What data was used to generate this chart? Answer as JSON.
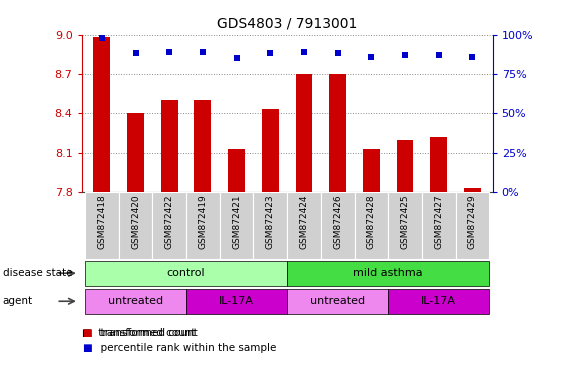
{
  "title": "GDS4803 / 7913001",
  "samples": [
    "GSM872418",
    "GSM872420",
    "GSM872422",
    "GSM872419",
    "GSM872421",
    "GSM872423",
    "GSM872424",
    "GSM872426",
    "GSM872428",
    "GSM872425",
    "GSM872427",
    "GSM872429"
  ],
  "bar_values": [
    8.98,
    8.4,
    8.5,
    8.5,
    8.13,
    8.43,
    8.7,
    8.7,
    8.13,
    8.2,
    8.22,
    7.83
  ],
  "percentile_values": [
    98,
    88,
    89,
    89,
    85,
    88,
    89,
    88,
    86,
    87,
    87,
    86
  ],
  "ylim_left": [
    7.8,
    9.0
  ],
  "ylim_right": [
    0,
    100
  ],
  "bar_color": "#cc0000",
  "dot_color": "#0000cc",
  "bar_width": 0.5,
  "yticks_left": [
    7.8,
    8.1,
    8.4,
    8.7,
    9.0
  ],
  "yticks_right": [
    0,
    25,
    50,
    75,
    100
  ],
  "left_axis_color": "#cc0000",
  "right_axis_color": "#0000cc",
  "grid_color": "#888888",
  "disease_regions": [
    {
      "start": 0,
      "end": 5,
      "label": "control",
      "color": "#aaffaa"
    },
    {
      "start": 6,
      "end": 11,
      "label": "mild asthma",
      "color": "#44dd44"
    }
  ],
  "agent_regions": [
    {
      "start": 0,
      "end": 2,
      "label": "untreated",
      "color": "#ee88ee"
    },
    {
      "start": 3,
      "end": 5,
      "label": "IL-17A",
      "color": "#cc00cc"
    },
    {
      "start": 6,
      "end": 8,
      "label": "untreated",
      "color": "#ee88ee"
    },
    {
      "start": 9,
      "end": 11,
      "label": "IL-17A",
      "color": "#cc00cc"
    }
  ],
  "sample_bg_color": "#d0d0d0",
  "sample_text_fontsize": 6.5,
  "legend_bar_label": "transformed count",
  "legend_dot_label": "percentile rank within the sample",
  "disease_label": "disease state",
  "agent_label": "agent",
  "arrow_color": "#666666"
}
